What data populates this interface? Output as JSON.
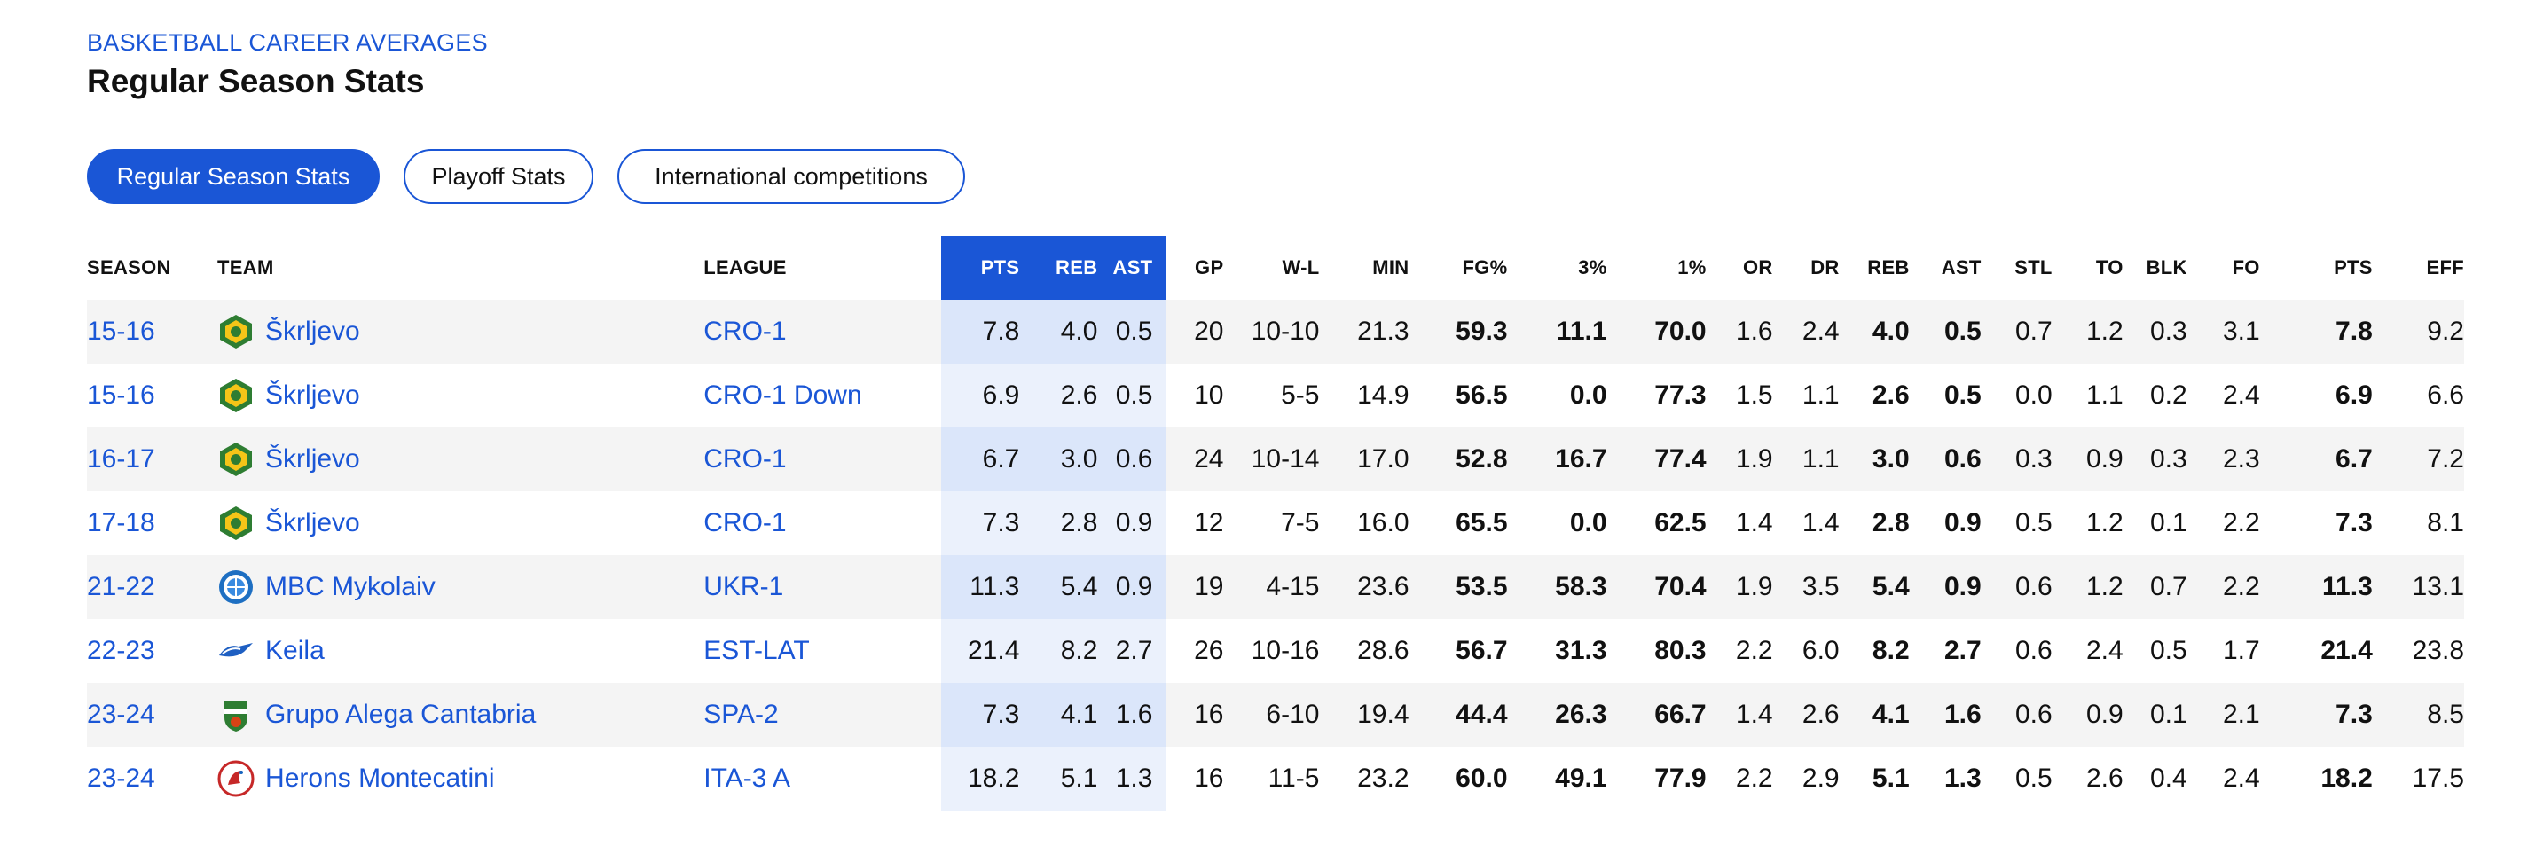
{
  "header": {
    "kicker": "BASKETBALL CAREER AVERAGES",
    "title": "Regular Season Stats"
  },
  "tabs": [
    {
      "label": "Regular Season Stats",
      "active": true
    },
    {
      "label": "Playoff Stats",
      "active": false
    },
    {
      "label": "International competitions",
      "active": false
    }
  ],
  "columns": {
    "season": "SEASON",
    "team": "TEAM",
    "league": "LEAGUE",
    "pts_hl": "PTS",
    "reb_hl": "REB",
    "ast_hl": "AST",
    "gp": "GP",
    "wl": "W-L",
    "min": "MIN",
    "fg": "FG%",
    "three": "3%",
    "one": "1%",
    "or": "OR",
    "dr": "DR",
    "reb": "REB",
    "ast": "AST",
    "stl": "STL",
    "to": "TO",
    "blk": "BLK",
    "fo": "FO",
    "pts": "PTS",
    "eff": "EFF"
  },
  "colors": {
    "accent": "#1a56d6",
    "row_stripe": "#f4f4f4",
    "highlight": "#dbe6fa"
  },
  "rows": [
    {
      "season": "15-16",
      "team": "Škrljevo",
      "logo": "skrljevo-logo",
      "league": "CRO-1",
      "pts_hl": "7.8",
      "reb_hl": "4.0",
      "ast_hl": "0.5",
      "gp": "20",
      "wl": "10-10",
      "min": "21.3",
      "fg": "59.3",
      "three": "11.1",
      "one": "70.0",
      "or": "1.6",
      "dr": "2.4",
      "reb": "4.0",
      "ast": "0.5",
      "stl": "0.7",
      "to": "1.2",
      "blk": "0.3",
      "fo": "3.1",
      "pts": "7.8",
      "eff": "9.2"
    },
    {
      "season": "15-16",
      "team": "Škrljevo",
      "logo": "skrljevo-logo",
      "league": "CRO-1 Down",
      "pts_hl": "6.9",
      "reb_hl": "2.6",
      "ast_hl": "0.5",
      "gp": "10",
      "wl": "5-5",
      "min": "14.9",
      "fg": "56.5",
      "three": "0.0",
      "one": "77.3",
      "or": "1.5",
      "dr": "1.1",
      "reb": "2.6",
      "ast": "0.5",
      "stl": "0.0",
      "to": "1.1",
      "blk": "0.2",
      "fo": "2.4",
      "pts": "6.9",
      "eff": "6.6"
    },
    {
      "season": "16-17",
      "team": "Škrljevo",
      "logo": "skrljevo-logo",
      "league": "CRO-1",
      "pts_hl": "6.7",
      "reb_hl": "3.0",
      "ast_hl": "0.6",
      "gp": "24",
      "wl": "10-14",
      "min": "17.0",
      "fg": "52.8",
      "three": "16.7",
      "one": "77.4",
      "or": "1.9",
      "dr": "1.1",
      "reb": "3.0",
      "ast": "0.6",
      "stl": "0.3",
      "to": "0.9",
      "blk": "0.3",
      "fo": "2.3",
      "pts": "6.7",
      "eff": "7.2"
    },
    {
      "season": "17-18",
      "team": "Škrljevo",
      "logo": "skrljevo-logo",
      "league": "CRO-1",
      "pts_hl": "7.3",
      "reb_hl": "2.8",
      "ast_hl": "0.9",
      "gp": "12",
      "wl": "7-5",
      "min": "16.0",
      "fg": "65.5",
      "three": "0.0",
      "one": "62.5",
      "or": "1.4",
      "dr": "1.4",
      "reb": "2.8",
      "ast": "0.9",
      "stl": "0.5",
      "to": "1.2",
      "blk": "0.1",
      "fo": "2.2",
      "pts": "7.3",
      "eff": "8.1"
    },
    {
      "season": "21-22",
      "team": "MBC Mykolaiv",
      "logo": "mykolaiv-logo",
      "league": "UKR-1",
      "pts_hl": "11.3",
      "reb_hl": "5.4",
      "ast_hl": "0.9",
      "gp": "19",
      "wl": "4-15",
      "min": "23.6",
      "fg": "53.5",
      "three": "58.3",
      "one": "70.4",
      "or": "1.9",
      "dr": "3.5",
      "reb": "5.4",
      "ast": "0.9",
      "stl": "0.6",
      "to": "1.2",
      "blk": "0.7",
      "fo": "2.2",
      "pts": "11.3",
      "eff": "13.1"
    },
    {
      "season": "22-23",
      "team": "Keila",
      "logo": "keila-logo",
      "league": "EST-LAT",
      "pts_hl": "21.4",
      "reb_hl": "8.2",
      "ast_hl": "2.7",
      "gp": "26",
      "wl": "10-16",
      "min": "28.6",
      "fg": "56.7",
      "three": "31.3",
      "one": "80.3",
      "or": "2.2",
      "dr": "6.0",
      "reb": "8.2",
      "ast": "2.7",
      "stl": "0.6",
      "to": "2.4",
      "blk": "0.5",
      "fo": "1.7",
      "pts": "21.4",
      "eff": "23.8"
    },
    {
      "season": "23-24",
      "team": "Grupo Alega Cantabria",
      "logo": "cantabria-logo",
      "league": "SPA-2",
      "pts_hl": "7.3",
      "reb_hl": "4.1",
      "ast_hl": "1.6",
      "gp": "16",
      "wl": "6-10",
      "min": "19.4",
      "fg": "44.4",
      "three": "26.3",
      "one": "66.7",
      "or": "1.4",
      "dr": "2.6",
      "reb": "4.1",
      "ast": "1.6",
      "stl": "0.6",
      "to": "0.9",
      "blk": "0.1",
      "fo": "2.1",
      "pts": "7.3",
      "eff": "8.5"
    },
    {
      "season": "23-24",
      "team": "Herons Montecatini",
      "logo": "montecatini-logo",
      "league": "ITA-3 A",
      "pts_hl": "18.2",
      "reb_hl": "5.1",
      "ast_hl": "1.3",
      "gp": "16",
      "wl": "11-5",
      "min": "23.2",
      "fg": "60.0",
      "three": "49.1",
      "one": "77.9",
      "or": "2.2",
      "dr": "2.9",
      "reb": "5.1",
      "ast": "1.3",
      "stl": "0.5",
      "to": "2.6",
      "blk": "0.4",
      "fo": "2.4",
      "pts": "18.2",
      "eff": "17.5"
    }
  ]
}
